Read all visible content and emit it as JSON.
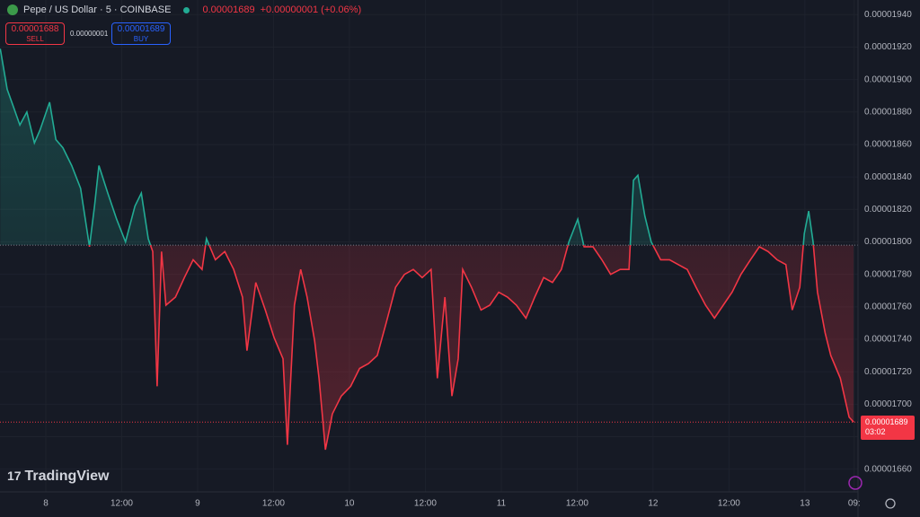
{
  "header": {
    "symbol": "Pepe / US Dollar · 5 · COINBASE",
    "last": "0.00001689",
    "change": "+0.00000001 (+0.06%)",
    "sell_price": "0.00001688",
    "sell_label": "SELL",
    "spread": "0.00000001",
    "buy_price": "0.00001689",
    "buy_label": "BUY",
    "countdown": "03:02",
    "logo": "TradingView"
  },
  "chart_data": {
    "type": "baseline",
    "baseline": 1.798e-05,
    "last_price": 1.689e-05,
    "up_color": "#22ab94",
    "down_color": "#f23645",
    "xlim": [
      -7.24,
      128.4
    ],
    "ylim": [
      1.646e-05,
      1.949e-05
    ],
    "xticks": [
      {
        "value": 0,
        "label": "8"
      },
      {
        "value": 12,
        "label": "12:00"
      },
      {
        "value": 24,
        "label": "9"
      },
      {
        "value": 36,
        "label": "12:00"
      },
      {
        "value": 48,
        "label": "10"
      },
      {
        "value": 60,
        "label": "12:00"
      },
      {
        "value": 72,
        "label": "11"
      },
      {
        "value": 84,
        "label": "12:00"
      },
      {
        "value": 96,
        "label": "12"
      },
      {
        "value": 108,
        "label": "12:00"
      },
      {
        "value": 120,
        "label": "13"
      },
      {
        "value": 127.8,
        "label": "09:"
      }
    ],
    "yticks": [
      {
        "value": 1.66e-05,
        "label": "0.00001660"
      },
      {
        "value": 1.68e-05,
        "label": "0.00001680"
      },
      {
        "value": 1.7e-05,
        "label": "0.00001700"
      },
      {
        "value": 1.72e-05,
        "label": "0.00001720"
      },
      {
        "value": 1.74e-05,
        "label": "0.00001740"
      },
      {
        "value": 1.76e-05,
        "label": "0.00001760"
      },
      {
        "value": 1.78e-05,
        "label": "0.00001780"
      },
      {
        "value": 1.8e-05,
        "label": "0.00001800"
      },
      {
        "value": 1.82e-05,
        "label": "0.00001820"
      },
      {
        "value": 1.84e-05,
        "label": "0.00001840"
      },
      {
        "value": 1.86e-05,
        "label": "0.00001860"
      },
      {
        "value": 1.88e-05,
        "label": "0.00001880"
      },
      {
        "value": 1.9e-05,
        "label": "0.00001900"
      },
      {
        "value": 1.92e-05,
        "label": "0.00001920"
      },
      {
        "value": 1.94e-05,
        "label": "0.00001940"
      }
    ],
    "x": [
      -7.2,
      -6.1,
      -5.1,
      -4.1,
      -3.0,
      -1.8,
      -0.9,
      0.6,
      1.6,
      2.7,
      4.1,
      5.5,
      6.9,
      7.7,
      8.4,
      9.8,
      11.2,
      12.6,
      14.1,
      15.1,
      16.2,
      16.9,
      17.6,
      18.3,
      19.0,
      20.5,
      21.9,
      23.3,
      24.7,
      25.4,
      26.8,
      28.3,
      29.7,
      31.1,
      31.8,
      33.2,
      34.7,
      36.1,
      37.5,
      38.2,
      39.3,
      40.3,
      41.3,
      42.5,
      43.2,
      44.2,
      45.3,
      46.7,
      48.2,
      49.6,
      51.0,
      52.4,
      53.8,
      55.3,
      56.7,
      58.1,
      59.5,
      60.9,
      61.9,
      63.1,
      64.2,
      65.2,
      65.9,
      67.3,
      68.8,
      70.2,
      71.6,
      73.0,
      74.4,
      75.9,
      77.3,
      78.7,
      80.1,
      81.5,
      82.7,
      84.1,
      85.1,
      86.5,
      87.9,
      89.3,
      90.8,
      92.2,
      92.9,
      93.6,
      94.7,
      95.7,
      97.2,
      98.6,
      100.0,
      101.4,
      102.8,
      104.3,
      105.7,
      107.1,
      108.5,
      109.9,
      111.4,
      112.8,
      114.2,
      115.6,
      117.0,
      118.0,
      119.2,
      119.9,
      120.6,
      121.3,
      122.0,
      123.2,
      124.1,
      125.6,
      127.0,
      127.7
    ],
    "values": [
      1.919e-05,
      1.894e-05,
      1.883e-05,
      1.872e-05,
      1.88e-05,
      1.861e-05,
      1.869e-05,
      1.886e-05,
      1.863e-05,
      1.858e-05,
      1.847e-05,
      1.833e-05,
      1.797e-05,
      1.822e-05,
      1.847e-05,
      1.83e-05,
      1.814e-05,
      1.8e-05,
      1.822e-05,
      1.83e-05,
      1.802e-05,
      1.794e-05,
      1.711e-05,
      1.794e-05,
      1.761e-05,
      1.766e-05,
      1.778e-05,
      1.789e-05,
      1.783e-05,
      1.802e-05,
      1.789e-05,
      1.794e-05,
      1.783e-05,
      1.766e-05,
      1.733e-05,
      1.775e-05,
      1.758e-05,
      1.741e-05,
      1.728e-05,
      1.675e-05,
      1.761e-05,
      1.783e-05,
      1.766e-05,
      1.739e-05,
      1.716e-05,
      1.672e-05,
      1.694e-05,
      1.705e-05,
      1.711e-05,
      1.722e-05,
      1.725e-05,
      1.73e-05,
      1.75e-05,
      1.772e-05,
      1.78e-05,
      1.783e-05,
      1.778e-05,
      1.783e-05,
      1.716e-05,
      1.766e-05,
      1.705e-05,
      1.728e-05,
      1.783e-05,
      1.772e-05,
      1.758e-05,
      1.761e-05,
      1.769e-05,
      1.766e-05,
      1.761e-05,
      1.753e-05,
      1.766e-05,
      1.778e-05,
      1.775e-05,
      1.783e-05,
      1.8e-05,
      1.814e-05,
      1.797e-05,
      1.797e-05,
      1.789e-05,
      1.78e-05,
      1.783e-05,
      1.783e-05,
      1.838e-05,
      1.841e-05,
      1.816e-05,
      1.8e-05,
      1.789e-05,
      1.789e-05,
      1.786e-05,
      1.783e-05,
      1.772e-05,
      1.761e-05,
      1.753e-05,
      1.761e-05,
      1.769e-05,
      1.78e-05,
      1.789e-05,
      1.797e-05,
      1.794e-05,
      1.789e-05,
      1.786e-05,
      1.758e-05,
      1.772e-05,
      1.805e-05,
      1.819e-05,
      1.8e-05,
      1.769e-05,
      1.744e-05,
      1.73e-05,
      1.716e-05,
      1.692e-05,
      1.689e-05
    ]
  }
}
